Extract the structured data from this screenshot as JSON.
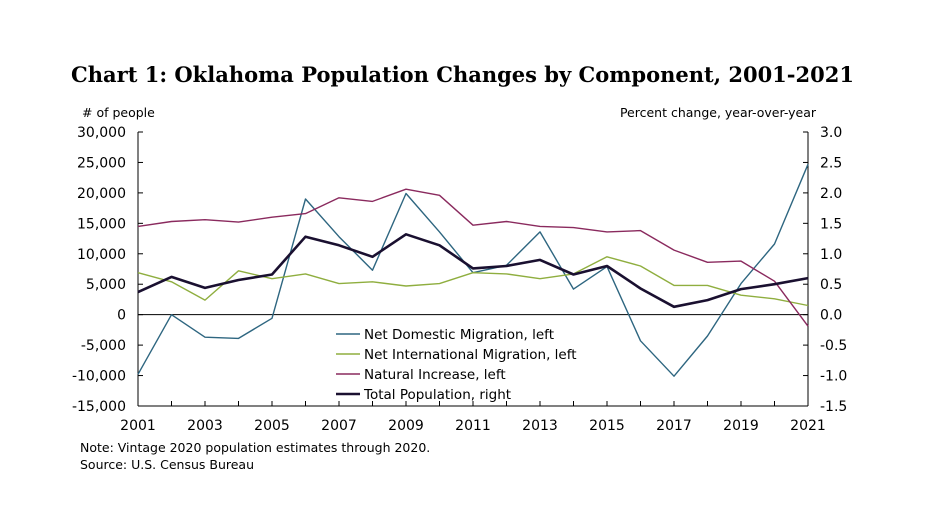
{
  "chart_data": {
    "type": "line",
    "title": "Chart 1: Oklahoma Population Changes by Component, 2001-2021",
    "ylabel_left": "# of people",
    "ylabel_right": "Percent change, year-over-year",
    "ylim_left": [
      -15000,
      30000
    ],
    "ylim_right": [
      -1.5,
      3.0
    ],
    "yticks_left": [
      "30,000",
      "25,000",
      "20,000",
      "15,000",
      "10,000",
      "5,000",
      "0",
      "-5,000",
      "-10,000",
      "-15,000"
    ],
    "yticks_right": [
      "3.0",
      "2.5",
      "2.0",
      "1.5",
      "1.0",
      "0.5",
      "0.0",
      "-0.5",
      "-1.0",
      "-1.5"
    ],
    "x": [
      2001,
      2002,
      2003,
      2004,
      2005,
      2006,
      2007,
      2008,
      2009,
      2010,
      2011,
      2012,
      2013,
      2014,
      2015,
      2016,
      2017,
      2018,
      2019,
      2020,
      2021
    ],
    "xticks": [
      "2001",
      "2003",
      "2005",
      "2007",
      "2009",
      "2011",
      "2013",
      "2015",
      "2017",
      "2019",
      "2021"
    ],
    "grid": false,
    "legend_position": "bottom-center",
    "series": [
      {
        "name": "Net Domestic Migration, left",
        "axis": "left",
        "color": "#2e6680",
        "values": [
          -9800,
          0,
          -3700,
          -3900,
          -600,
          19000,
          12800,
          7300,
          19900,
          13600,
          6900,
          8100,
          13600,
          4200,
          7900,
          -4300,
          -10100,
          -3500,
          5100,
          11600,
          24700
        ]
      },
      {
        "name": "Net International Migration, left",
        "axis": "left",
        "color": "#8fae3f",
        "values": [
          6900,
          5400,
          2400,
          7200,
          5900,
          6700,
          5100,
          5400,
          4700,
          5100,
          6900,
          6700,
          5900,
          6700,
          9500,
          8000,
          4800,
          4800,
          3200,
          2600,
          1500
        ]
      },
      {
        "name": "Natural Increase, left",
        "axis": "left",
        "color": "#8a2a5e",
        "values": [
          14500,
          15300,
          15600,
          15200,
          16000,
          16600,
          19200,
          18600,
          20600,
          19600,
          14700,
          15300,
          14500,
          14300,
          13600,
          13800,
          10600,
          8600,
          8800,
          5500,
          -1900
        ]
      },
      {
        "name": "Total Population, right",
        "axis": "right",
        "color": "#1a1030",
        "values": [
          0.37,
          0.62,
          0.44,
          0.57,
          0.66,
          1.28,
          1.14,
          0.95,
          1.32,
          1.14,
          0.76,
          0.8,
          0.9,
          0.66,
          0.8,
          0.43,
          0.13,
          0.24,
          0.42,
          0.5,
          0.6
        ]
      }
    ]
  },
  "notes": {
    "note": "Note: Vintage 2020 population estimates through 2020.",
    "source": "Source: U.S. Census Bureau"
  }
}
